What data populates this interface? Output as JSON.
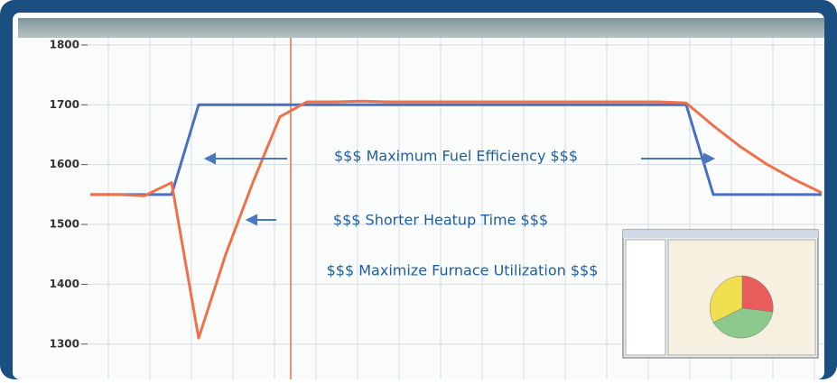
{
  "chart_data": {
    "type": "line",
    "categories": [
      null,
      null,
      null,
      null,
      null,
      null,
      null,
      null,
      null,
      null,
      null,
      null,
      null,
      null,
      null,
      null,
      null,
      null,
      null,
      null,
      null,
      null,
      null,
      null,
      null,
      null,
      null,
      null
    ],
    "series": [
      {
        "color": "#4a6fc0",
        "values": [
          1550,
          1550,
          1550,
          1550,
          1700,
          1700,
          1700,
          1700,
          1700,
          1700,
          1700,
          1700,
          1700,
          1700,
          1700,
          1700,
          1700,
          1700,
          1700,
          1700,
          1700,
          1700,
          1700,
          1550,
          1550,
          1550,
          1550,
          1550
        ]
      },
      {
        "color": "#f0704a",
        "values": [
          1550,
          1550,
          1548,
          1570,
          1310,
          1450,
          1570,
          1680,
          1705,
          1705,
          1706,
          1705,
          1705,
          1705,
          1705,
          1705,
          1705,
          1705,
          1705,
          1705,
          1705,
          1705,
          1703,
          1665,
          1630,
          1600,
          1575,
          1553
        ]
      }
    ],
    "ylim": [
      1250,
      1830
    ],
    "yticks": [
      1300,
      1400,
      1500,
      1600,
      1700,
      1800
    ],
    "grid": true,
    "annotations": [
      "$$$ Maximum Fuel Efficiency  $$$",
      "$$$  Shorter Heatup Time  $$$",
      "$$$  Maximize Furnace Utilization $$$"
    ]
  }
}
